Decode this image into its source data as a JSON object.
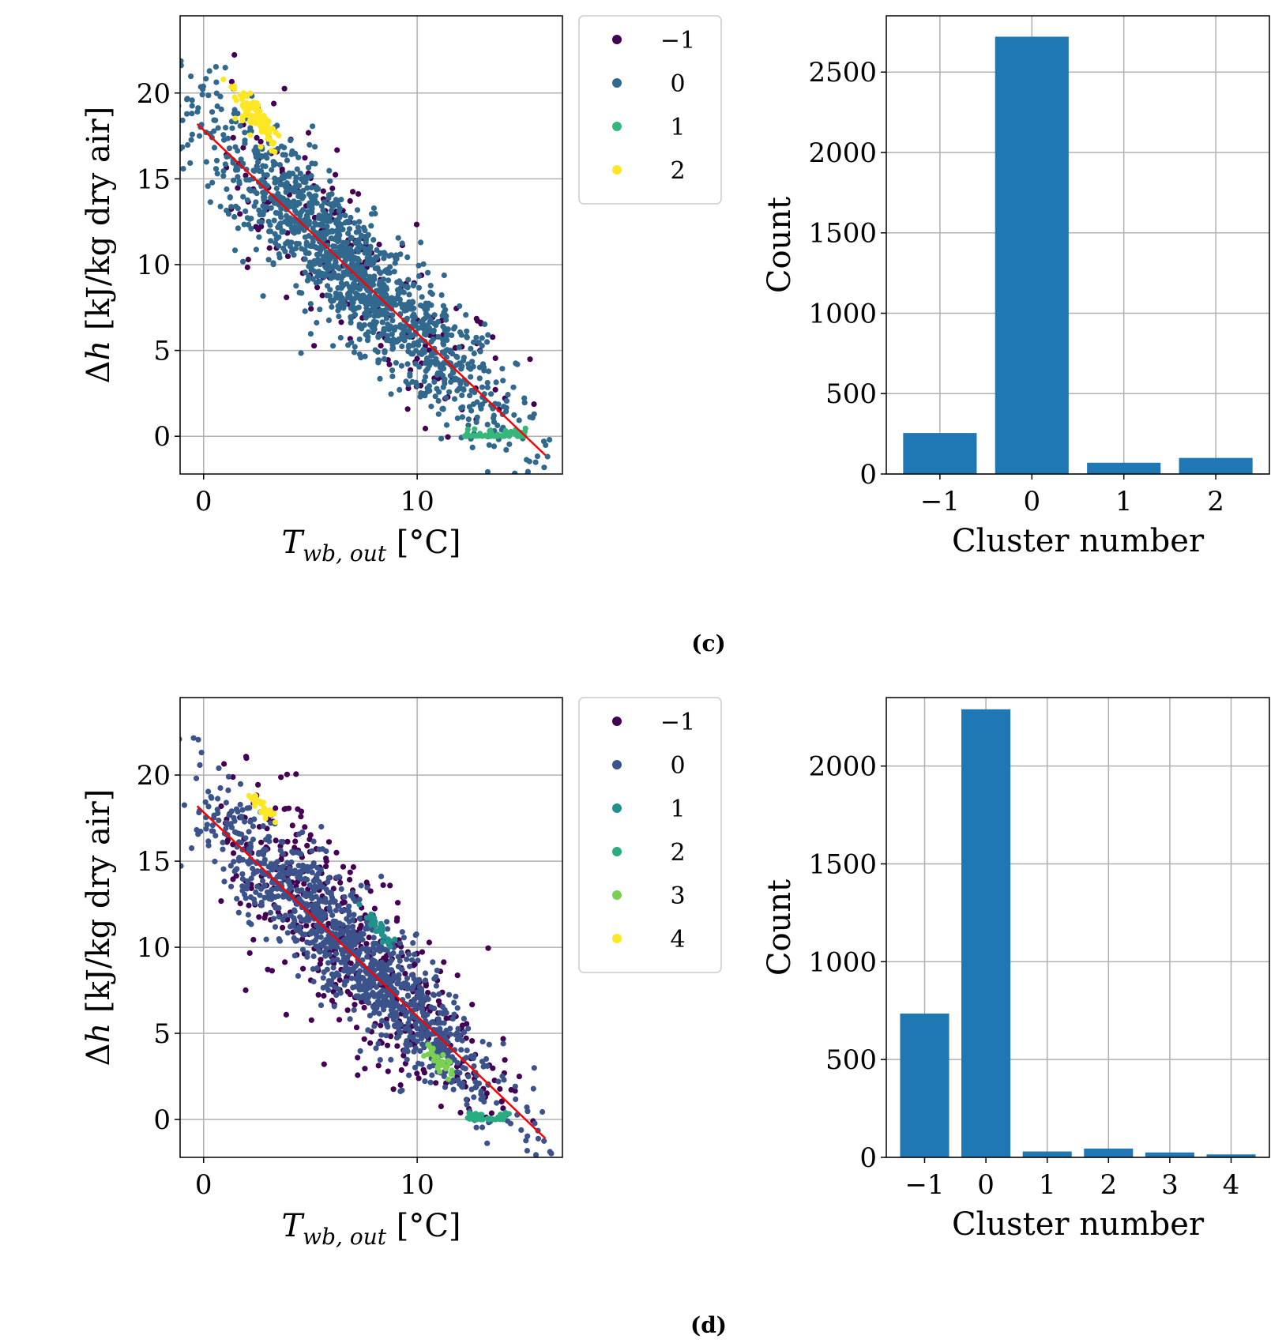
{
  "panels": [
    {
      "label": "(c)",
      "chart_data": [
        {
          "type": "scatter",
          "xlabel_base": "T",
          "xlabel_sub": "wb, out",
          "xlabel_unit": " [°C]",
          "ylabel_prefix": "Δ",
          "ylabel_var": "h",
          "ylabel_rest": " [kJ/kg dry air]",
          "xlim": [
            -1.1,
            16.8
          ],
          "ylim": [
            -2.2,
            24.5
          ],
          "xticks": [
            0,
            10
          ],
          "xtick_labels": [
            "0",
            "10"
          ],
          "yticks": [
            0,
            5,
            10,
            15,
            20
          ],
          "ytick_labels": [
            "0",
            "5",
            "10",
            "15",
            "20"
          ],
          "grid": true,
          "legend_position": "outside-right",
          "fit_line": {
            "x": [
              -0.3,
              16
            ],
            "y": [
              18.2,
              -1.1
            ],
            "color": "#ff0000"
          },
          "legend": [
            {
              "label": "−1",
              "color": "#440154"
            },
            {
              "label": "0",
              "color": "#31688e"
            },
            {
              "label": "1",
              "color": "#35b779"
            },
            {
              "label": "2",
              "color": "#fde725"
            }
          ],
          "clusters": [
            {
              "cluster": "-1",
              "color": "#440154",
              "center": [
                6.5,
                10.5
              ],
              "spread_x": 4.3,
              "spread_y": 2.6,
              "count": 250
            },
            {
              "cluster": "0",
              "color": "#31688e",
              "center": [
                6.8,
                9.8
              ],
              "spread_x": 3.9,
              "spread_y": 1.9,
              "count": 1400
            },
            {
              "cluster": "1",
              "color": "#35b779",
              "x_range": [
                12.2,
                15.2
              ],
              "y_range": [
                0,
                0.5
              ],
              "count": 60
            },
            {
              "cluster": "2",
              "color": "#fde725",
              "center": [
                2.5,
                18.6
              ],
              "spread_x": 0.6,
              "spread_y": 0.6,
              "count": 80
            }
          ]
        },
        {
          "type": "bar",
          "xlabel": "Cluster number",
          "ylabel": "Count",
          "categories": [
            "−1",
            "0",
            "1",
            "2"
          ],
          "values": [
            255,
            2720,
            70,
            100
          ],
          "ylim": [
            0,
            2850
          ],
          "yticks": [
            0,
            500,
            1000,
            1500,
            2000,
            2500
          ],
          "ytick_labels": [
            "0",
            "500",
            "1000",
            "1500",
            "2000",
            "2500"
          ],
          "color": "#1f77b4",
          "grid": true
        }
      ]
    },
    {
      "label": "(d)",
      "chart_data": [
        {
          "type": "scatter",
          "xlabel_base": "T",
          "xlabel_sub": "wb, out",
          "xlabel_unit": " [°C]",
          "ylabel_prefix": "Δ",
          "ylabel_var": "h",
          "ylabel_rest": " [kJ/kg dry air]",
          "xlim": [
            -1.1,
            16.8
          ],
          "ylim": [
            -2.2,
            24.5
          ],
          "xticks": [
            0,
            10
          ],
          "xtick_labels": [
            "0",
            "10"
          ],
          "yticks": [
            0,
            5,
            10,
            15,
            20
          ],
          "ytick_labels": [
            "0",
            "5",
            "10",
            "15",
            "20"
          ],
          "grid": true,
          "legend_position": "outside-right",
          "fit_line": {
            "x": [
              -0.3,
              16
            ],
            "y": [
              18.2,
              -1.1
            ],
            "color": "#ff0000"
          },
          "legend": [
            {
              "label": "−1",
              "color": "#440154"
            },
            {
              "label": "0",
              "color": "#3b528b"
            },
            {
              "label": "1",
              "color": "#21918c"
            },
            {
              "label": "2",
              "color": "#27ad81"
            },
            {
              "label": "3",
              "color": "#7ad151"
            },
            {
              "label": "4",
              "color": "#fde725"
            }
          ],
          "clusters": [
            {
              "cluster": "-1",
              "color": "#440154",
              "center": [
                6.5,
                10.5
              ],
              "spread_x": 4.3,
              "spread_y": 2.8,
              "count": 520
            },
            {
              "cluster": "0",
              "color": "#3b528b",
              "center": [
                7.0,
                9.6
              ],
              "spread_x": 3.6,
              "spread_y": 1.7,
              "count": 1150
            },
            {
              "cluster": "1",
              "color": "#21918c",
              "center": [
                8.2,
                11.1
              ],
              "spread_x": 0.4,
              "spread_y": 0.25,
              "count": 30
            },
            {
              "cluster": "2",
              "color": "#27ad81",
              "x_range": [
                12.3,
                14.3
              ],
              "y_range": [
                0,
                0.4
              ],
              "count": 40
            },
            {
              "cluster": "3",
              "color": "#7ad151",
              "center": [
                11.0,
                3.4
              ],
              "spread_x": 0.35,
              "spread_y": 0.3,
              "count": 30
            },
            {
              "cluster": "4",
              "color": "#fde725",
              "center": [
                2.7,
                18.2
              ],
              "spread_x": 0.35,
              "spread_y": 0.2,
              "count": 25
            }
          ]
        },
        {
          "type": "bar",
          "xlabel": "Cluster number",
          "ylabel": "Count",
          "categories": [
            "−1",
            "0",
            "1",
            "2",
            "3",
            "4"
          ],
          "values": [
            735,
            2290,
            30,
            45,
            25,
            15
          ],
          "ylim": [
            0,
            2350
          ],
          "yticks": [
            0,
            500,
            1000,
            1500,
            2000
          ],
          "ytick_labels": [
            "0",
            "500",
            "1000",
            "1500",
            "2000"
          ],
          "color": "#1f77b4",
          "grid": true
        }
      ]
    }
  ]
}
